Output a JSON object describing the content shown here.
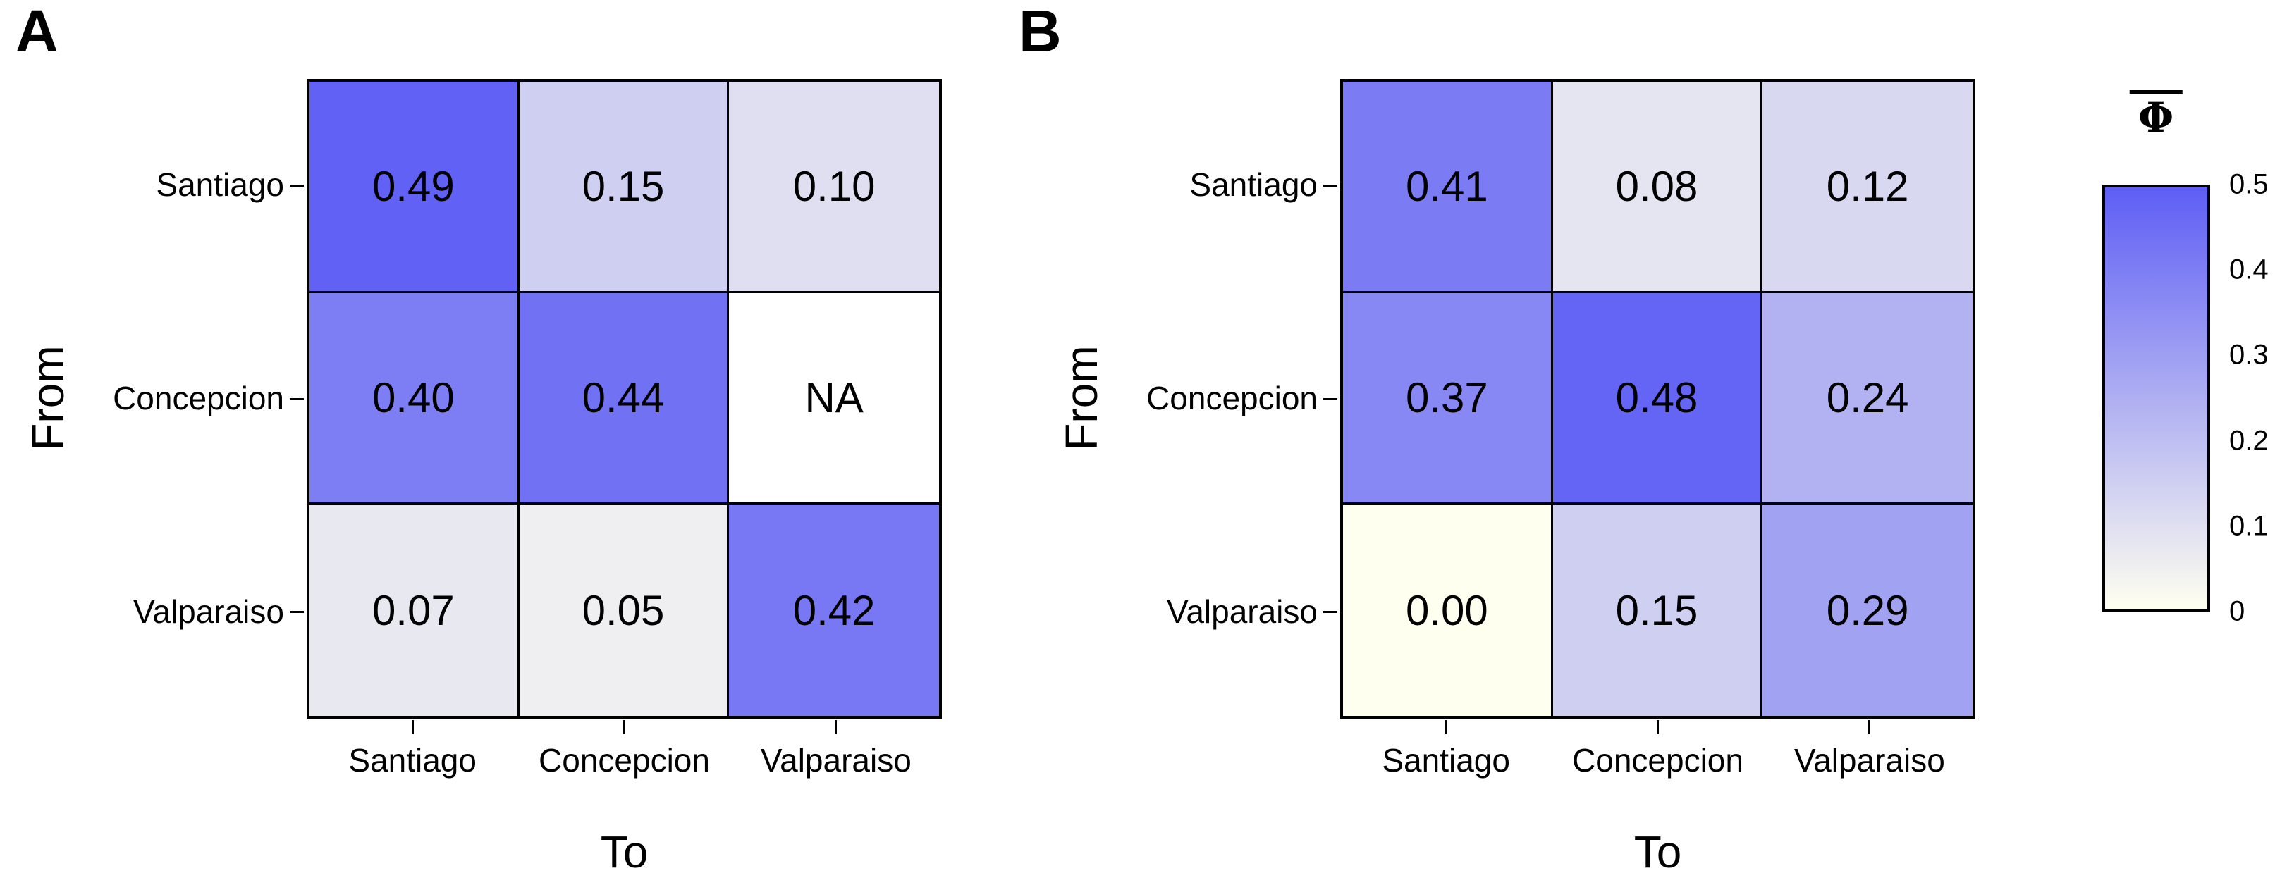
{
  "panels": [
    {
      "label": "A",
      "x_axis_title": "To",
      "y_axis_title": "From",
      "row_labels": [
        "Santiago",
        "Concepcion",
        "Valparaiso"
      ],
      "col_labels": [
        "Santiago",
        "Concepcion",
        "Valparaiso"
      ],
      "cells": [
        [
          "0.49",
          "0.15",
          "0.10"
        ],
        [
          "0.40",
          "0.44",
          "NA"
        ],
        [
          "0.07",
          "0.05",
          "0.42"
        ]
      ]
    },
    {
      "label": "B",
      "x_axis_title": "To",
      "y_axis_title": "From",
      "row_labels": [
        "Santiago",
        "Concepcion",
        "Valparaiso"
      ],
      "col_labels": [
        "Santiago",
        "Concepcion",
        "Valparaiso"
      ],
      "cells": [
        [
          "0.41",
          "0.08",
          "0.12"
        ],
        [
          "0.37",
          "0.48",
          "0.24"
        ],
        [
          "0.00",
          "0.15",
          "0.29"
        ]
      ]
    }
  ],
  "legend": {
    "title": "Φ",
    "title_overline": true,
    "ticks": [
      "0.5",
      "0.4",
      "0.3",
      "0.2",
      "0.1",
      "0"
    ],
    "min": 0,
    "max": 0.5,
    "color_low": "#FFFFF0",
    "color_high": "#5E5EF5",
    "na_color": "#FFFFFF"
  },
  "chart_data": [
    {
      "type": "heatmap",
      "panel": "A",
      "xlabel": "To",
      "ylabel": "From",
      "rows": [
        "Santiago",
        "Concepcion",
        "Valparaiso"
      ],
      "columns": [
        "Santiago",
        "Concepcion",
        "Valparaiso"
      ],
      "values": [
        [
          0.49,
          0.15,
          0.1
        ],
        [
          0.4,
          0.44,
          null
        ],
        [
          0.07,
          0.05,
          0.42
        ]
      ],
      "na_label": "NA",
      "value_range": [
        0,
        0.5
      ],
      "colorscale": {
        "low": "#FFFFF0",
        "high": "#5E5EF5",
        "na": "#FFFFFF"
      },
      "cell_borders": true
    },
    {
      "type": "heatmap",
      "panel": "B",
      "xlabel": "To",
      "ylabel": "From",
      "rows": [
        "Santiago",
        "Concepcion",
        "Valparaiso"
      ],
      "columns": [
        "Santiago",
        "Concepcion",
        "Valparaiso"
      ],
      "values": [
        [
          0.41,
          0.08,
          0.12
        ],
        [
          0.37,
          0.48,
          0.24
        ],
        [
          0.0,
          0.15,
          0.29
        ]
      ],
      "na_label": "NA",
      "value_range": [
        0,
        0.5
      ],
      "colorscale": {
        "low": "#FFFFF0",
        "high": "#5E5EF5",
        "na": "#FFFFFF"
      },
      "cell_borders": true
    },
    {
      "type": "colorbar",
      "title": "Φ",
      "title_overline": true,
      "orientation": "vertical",
      "tick_labels": [
        "0.5",
        "0.4",
        "0.3",
        "0.2",
        "0.1",
        "0"
      ],
      "range": [
        0,
        0.5
      ],
      "color_low": "#FFFFF0",
      "color_high": "#5E5EF5",
      "position": "right"
    }
  ]
}
